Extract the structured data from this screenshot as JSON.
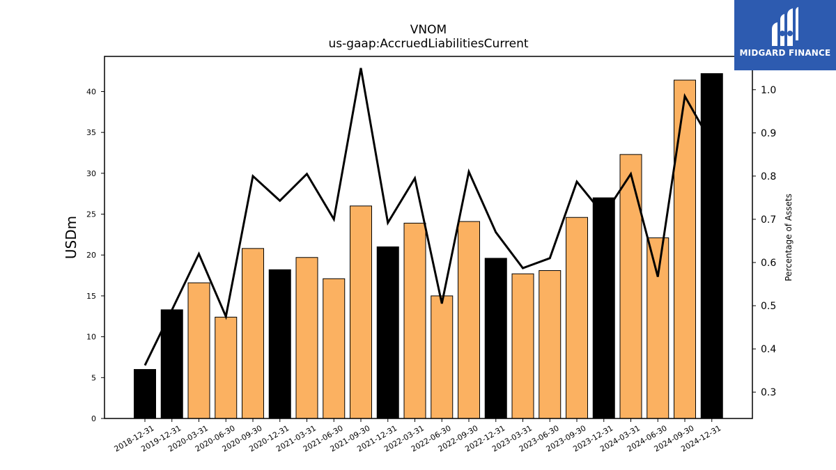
{
  "logo": {
    "text": "MIDGARD FINANCE",
    "background": "#2d5bb0"
  },
  "chart_data": {
    "type": "bar",
    "title": "VNOM",
    "subtitle": "us-gaap:AccruedLiabilitiesCurrent",
    "ylabel": "USDm",
    "y2label": "Percentage of Assets",
    "ylim": [
      0,
      44.3
    ],
    "y2lim": [
      0.239,
      1.077
    ],
    "yticks": [
      0,
      5,
      10,
      15,
      20,
      25,
      30,
      35,
      40
    ],
    "y2ticks": [
      0.3,
      0.4,
      0.5,
      0.6,
      0.7,
      0.8,
      0.9,
      1.0
    ],
    "categories": [
      "2018-12-31",
      "2019-12-31",
      "2020-03-31",
      "2020-06-30",
      "2020-09-30",
      "2020-12-31",
      "2021-03-31",
      "2021-06-30",
      "2021-09-30",
      "2021-12-31",
      "2022-03-31",
      "2022-06-30",
      "2022-09-30",
      "2022-12-31",
      "2023-03-31",
      "2023-06-30",
      "2023-09-30",
      "2023-12-31",
      "2024-03-31",
      "2024-06-30",
      "2024-09-30",
      "2024-12-31"
    ],
    "series": [
      {
        "type": "bar",
        "values": [
          6.0,
          13.3,
          16.6,
          12.4,
          20.8,
          18.2,
          19.7,
          17.1,
          26.0,
          21.0,
          23.9,
          15.0,
          24.1,
          19.6,
          17.7,
          18.1,
          24.6,
          27.0,
          32.3,
          22.1,
          41.4,
          42.2
        ],
        "colors": [
          "#000000",
          "#000000",
          "#fbb161",
          "#fbb161",
          "#fbb161",
          "#000000",
          "#fbb161",
          "#fbb161",
          "#fbb161",
          "#000000",
          "#fbb161",
          "#fbb161",
          "#fbb161",
          "#000000",
          "#fbb161",
          "#fbb161",
          "#fbb161",
          "#000000",
          "#fbb161",
          "#fbb161",
          "#fbb161",
          "#000000"
        ]
      },
      {
        "type": "line",
        "axis": "right",
        "values": [
          0.362,
          0.49,
          0.62,
          0.475,
          0.8,
          0.743,
          0.805,
          0.7,
          1.05,
          0.692,
          0.795,
          0.505,
          0.81,
          0.67,
          0.587,
          0.61,
          0.787,
          0.71,
          0.805,
          0.567,
          0.985,
          0.875
        ],
        "color": "#000000"
      }
    ],
    "grid": false
  }
}
